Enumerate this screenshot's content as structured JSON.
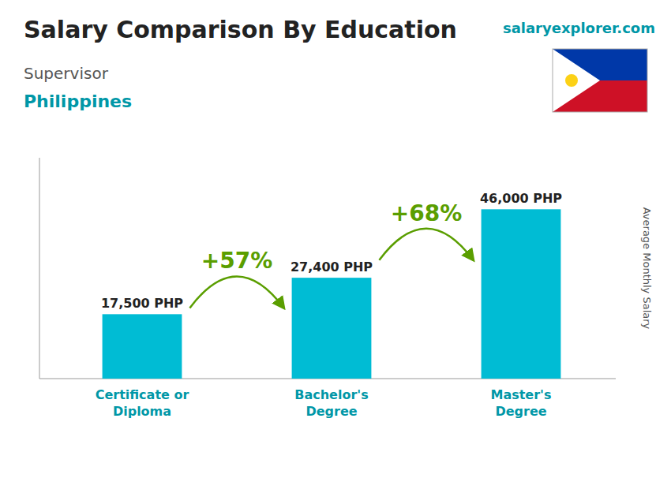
{
  "chart_data": {
    "type": "bar",
    "title": "Salary Comparison By Education",
    "subtitle": [
      "Supervisor",
      "Philippines"
    ],
    "y_label": "Average Monthly Salary",
    "categories": [
      "Certificate or\nDiploma",
      "Bachelor's\nDegree",
      "Master's\nDegree"
    ],
    "values": [
      17500,
      27400,
      46000
    ],
    "value_labels": [
      "17,500 PHP",
      "27,400 PHP",
      "46,000 PHP"
    ],
    "data_labels": true,
    "color": "#00bcd4",
    "ylim": [
      0,
      60000
    ],
    "tick_labels": "x",
    "grid": false,
    "annotations": [
      {
        "text": "+57%",
        "from": 0,
        "to": 1
      },
      {
        "text": "+68%",
        "from": 1,
        "to": 2
      },
      {
        "text": "salaryexplorer.com"
      }
    ]
  }
}
